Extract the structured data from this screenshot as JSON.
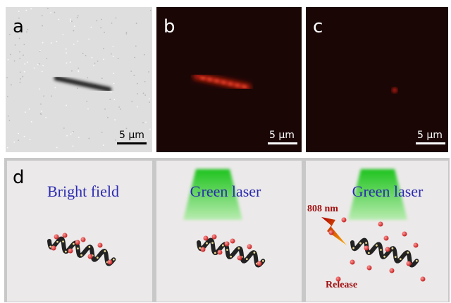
{
  "panels": [
    {
      "label": "a",
      "scale_bar": "5 µm"
    },
    {
      "label": "b",
      "scale_bar": "5 µm"
    },
    {
      "label": "c",
      "scale_bar": "5 µm"
    }
  ],
  "schematic": {
    "label": "d",
    "subpanels": [
      {
        "title": "Bright field"
      },
      {
        "title": "Green laser"
      },
      {
        "title": "Green laser",
        "laser": "808 nm",
        "note": "Release"
      }
    ]
  }
}
